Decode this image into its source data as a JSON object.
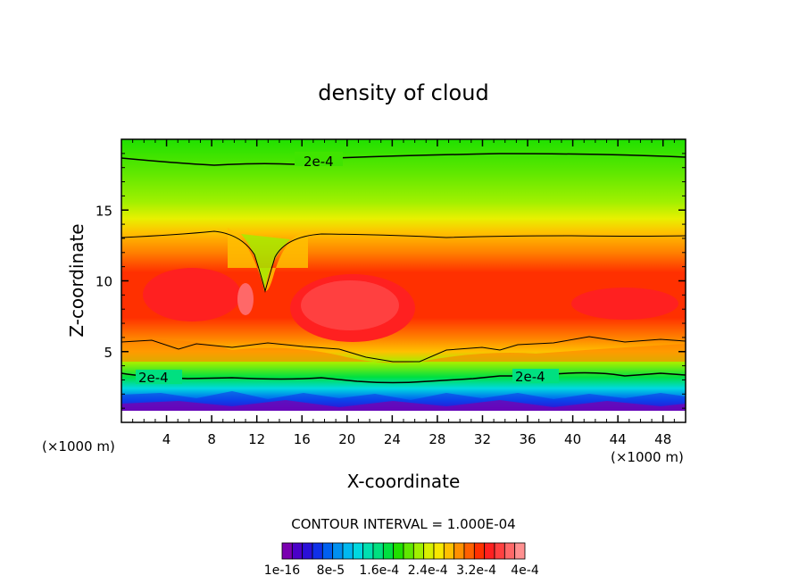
{
  "chart_data": {
    "type": "heatmap",
    "title": "density of cloud",
    "xlabel": "X-coordinate",
    "ylabel": "Z-coordinate",
    "x_unit_left": "(×1000 m)",
    "x_unit_right": "(×1000 m)",
    "xlim": [
      0,
      50
    ],
    "ylim": [
      0,
      20
    ],
    "x_ticks": [
      4,
      8,
      12,
      16,
      20,
      24,
      28,
      32,
      36,
      40,
      44,
      48
    ],
    "y_ticks": [
      5,
      10,
      15
    ],
    "contour_labels": [
      "2e-4",
      "2e-4",
      "2e-4"
    ],
    "contour_interval_text": "CONTOUR INTERVAL = 1.000E-04",
    "colorbar_labels": [
      "1e-16",
      "8e-5",
      "1.6e-4",
      "2.4e-4",
      "3.2e-4",
      "4e-4"
    ],
    "colorbar_colors": [
      "#7a00b0",
      "#4a00c8",
      "#2a10d8",
      "#1030e8",
      "#0060f0",
      "#0090f0",
      "#00b8f0",
      "#00d8e0",
      "#00e0b0",
      "#00e080",
      "#00e040",
      "#20e000",
      "#60e800",
      "#a0f000",
      "#d8f000",
      "#f8e800",
      "#ffc000",
      "#ff9000",
      "#ff6000",
      "#ff3000",
      "#ff2020",
      "#ff4040",
      "#ff6868",
      "#ff9090"
    ]
  }
}
